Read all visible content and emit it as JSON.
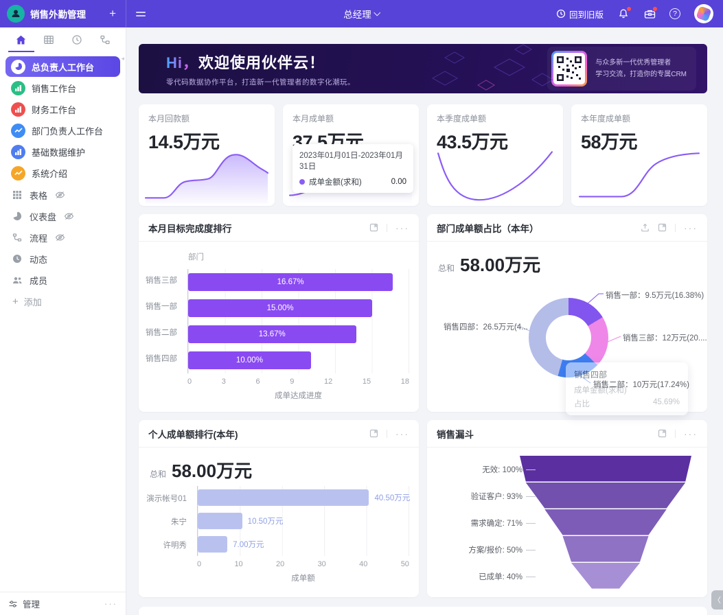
{
  "topbar": {
    "app_title": "销售外勤管理",
    "role": "总经理",
    "back_label": "回到旧版"
  },
  "sidebar": {
    "tabs": [
      {
        "icon": "home-icon",
        "active": true
      },
      {
        "icon": "table-icon",
        "active": false
      },
      {
        "icon": "clock-icon",
        "active": false
      },
      {
        "icon": "org-icon",
        "active": false
      }
    ],
    "items": [
      {
        "label": "总负责人工作台",
        "icon": "pie-chart",
        "color": "#ffffff",
        "active": true
      },
      {
        "label": "销售工作台",
        "icon": "bar-chart",
        "color": "#2bbf85",
        "active": false
      },
      {
        "label": "财务工作台",
        "icon": "bar-chart",
        "color": "#ee4f4f",
        "active": false
      },
      {
        "label": "部门负责人工作台",
        "icon": "line-chart",
        "color": "#3f8cf5",
        "active": false
      },
      {
        "label": "基础数据维护",
        "icon": "bar-chart",
        "color": "#4f7df0",
        "active": false
      },
      {
        "label": "系统介绍",
        "icon": "line-chart",
        "color": "#f5a629",
        "active": false
      }
    ],
    "secondary_items": [
      {
        "label": "表格",
        "icon": "grid",
        "hidden_eye": true
      },
      {
        "label": "仪表盘",
        "icon": "dashboard",
        "hidden_eye": true
      },
      {
        "label": "流程",
        "icon": "flow",
        "hidden_eye": true
      },
      {
        "label": "动态",
        "icon": "clock",
        "hidden_eye": false
      },
      {
        "label": "成员",
        "icon": "members",
        "hidden_eye": false
      }
    ],
    "add_label": "添加",
    "manage_label": "管理"
  },
  "banner": {
    "title_hi": "Hi，",
    "title_rest": "欢迎使用伙伴云！",
    "subtitle": "零代码数据协作平台，打造新一代管理者的数字化潮玩。",
    "qr_line1": "与众多新一代优秀管理者",
    "qr_line2": "学习交流，打造你的专属CRM"
  },
  "stat_cards": [
    {
      "label": "本月回款额",
      "value": "14.5万元",
      "spark": "area-hump"
    },
    {
      "label": "本月成单额",
      "value": "37.5万元",
      "spark": "line-spike",
      "tooltip": {
        "date_range": "2023年01月01日-2023年01月31日",
        "series": "成单金额(求和)",
        "value": "0.00"
      }
    },
    {
      "label": "本季度成单额",
      "value": "43.5万元",
      "spark": "u-curve"
    },
    {
      "label": "本年度成单额",
      "value": "58万元",
      "spark": "s-curve"
    }
  ],
  "chart_data": [
    {
      "id": "dept_target",
      "type": "bar",
      "orientation": "horizontal",
      "title": "本月目标完成度排行",
      "ylabel": "部门",
      "xlabel": "成单达成进度",
      "categories": [
        "销售三部",
        "销售一部",
        "销售二部",
        "销售四部"
      ],
      "values": [
        16.67,
        15.0,
        13.67,
        10.0
      ],
      "bar_labels": [
        "16.67%",
        "15.00%",
        "13.67%",
        "10.00%"
      ],
      "xlim": [
        0,
        18
      ],
      "xticks": [
        "0",
        "3",
        "6",
        "9",
        "12",
        "15",
        "18"
      ],
      "bar_color": "#8a4af2"
    },
    {
      "id": "dept_share",
      "type": "pie",
      "title": "部门成单额占比（本年）",
      "total_label": "总和",
      "total_value": "58.00万元",
      "slices": [
        {
          "name": "销售一部",
          "value": 9.5,
          "pct": 16.38,
          "label": "销售一部：9.5万元(16.38%)",
          "color": "#8355ef"
        },
        {
          "name": "销售三部",
          "value": 12,
          "pct": 20.69,
          "label": "销售三部：12万元(20....",
          "color": "#ef87e9"
        },
        {
          "name": "销售二部",
          "value": 10,
          "pct": 17.24,
          "label": "销售二部：10万元(17.24%)",
          "color": "#3e7ef2"
        },
        {
          "name": "销售四部",
          "value": 26.5,
          "pct": 45.69,
          "label": "销售四部：26.5万元(4...",
          "color": "#b4bde8"
        }
      ],
      "tooltip": {
        "title": "销售四部",
        "row1_label": "成单金额(求和)",
        "row2_label": "占比",
        "row2_value": "45.69%"
      }
    },
    {
      "id": "personal_rank",
      "type": "bar",
      "orientation": "horizontal",
      "title": "个人成单额排行(本年)",
      "total_label": "总和",
      "total_value": "58.00万元",
      "xlabel": "成单额",
      "categories": [
        "演示帐号01",
        "朱宁",
        "许明秀"
      ],
      "values": [
        40.5,
        10.5,
        7.0
      ],
      "bar_labels": [
        "40.50万元",
        "10.50万元",
        "7.00万元"
      ],
      "xlim": [
        0,
        50
      ],
      "xticks": [
        "0",
        "10",
        "20",
        "30",
        "40",
        "50"
      ],
      "bar_color": "#b9c2ef"
    },
    {
      "id": "sales_funnel",
      "type": "funnel",
      "title": "销售漏斗",
      "stages": [
        {
          "label": "无效: 100%",
          "pct": 100,
          "color": "#5b2fa0"
        },
        {
          "label": "验证客户: 93%",
          "pct": 93,
          "color": "#7150ae"
        },
        {
          "label": "需求确定: 71%",
          "pct": 71,
          "color": "#7d5cb8"
        },
        {
          "label": "方案/报价: 50%",
          "pct": 50,
          "color": "#8f72c4"
        },
        {
          "label": "已成单: 40%",
          "pct": 40,
          "color": "#a78fd6"
        }
      ]
    }
  ],
  "floating": {
    "collapse_glyph": "〈"
  }
}
